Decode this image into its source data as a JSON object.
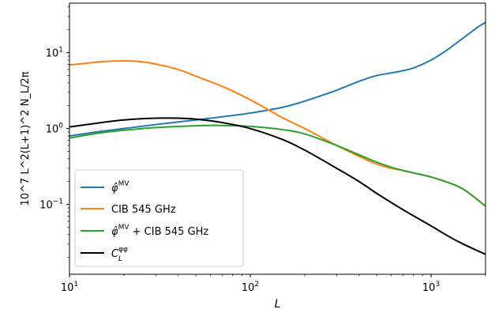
{
  "chart_data": {
    "type": "line",
    "xscale": "log",
    "yscale": "log",
    "xlim": [
      10,
      2000
    ],
    "ylim": [
      0.012,
      45
    ],
    "xlabel": "L",
    "ylabel": "10^7 L^2(L+1)^2 N_L/2π",
    "x_ticks": [
      {
        "value": 10,
        "mant": "10",
        "exp": "1"
      },
      {
        "value": 100,
        "mant": "10",
        "exp": "2"
      },
      {
        "value": 1000,
        "mant": "10",
        "exp": "3"
      }
    ],
    "y_ticks": [
      {
        "value": 0.1,
        "mant": "10",
        "exp": "−1"
      },
      {
        "value": 1,
        "mant": "10",
        "exp": "0"
      },
      {
        "value": 10,
        "mant": "10",
        "exp": "1"
      }
    ],
    "legend_position": "lower-left",
    "series": [
      {
        "name": "φ̂^MV",
        "color": "#1f77b4",
        "x": [
          10,
          15,
          20,
          30,
          50,
          70,
          100,
          150,
          200,
          300,
          400,
          500,
          600,
          700,
          800,
          1000,
          1200,
          1500,
          1800,
          2000
        ],
        "y": [
          0.8,
          0.92,
          1.0,
          1.13,
          1.3,
          1.43,
          1.6,
          1.9,
          2.3,
          3.2,
          4.2,
          5.0,
          5.4,
          5.8,
          6.3,
          8.0,
          10.5,
          15.5,
          21.5,
          25
        ]
      },
      {
        "name": "CIB  545 GHz",
        "color": "#ff7f0e",
        "x": [
          10,
          12,
          15,
          20,
          25,
          30,
          40,
          50,
          70,
          100,
          150,
          200,
          300,
          400,
          500,
          600,
          700,
          800,
          1000,
          1200,
          1500,
          2000
        ],
        "y": [
          6.9,
          7.2,
          7.6,
          7.8,
          7.6,
          7.1,
          6.0,
          4.9,
          3.6,
          2.4,
          1.4,
          1.0,
          0.6,
          0.43,
          0.34,
          0.3,
          0.28,
          0.26,
          0.23,
          0.2,
          0.16,
          0.095
        ]
      },
      {
        "name": "φ̂^MV + CIB  545 GHz",
        "color": "#2ca02c",
        "x": [
          10,
          15,
          20,
          30,
          50,
          70,
          100,
          150,
          200,
          300,
          400,
          500,
          600,
          700,
          800,
          1000,
          1200,
          1500,
          2000
        ],
        "y": [
          0.75,
          0.88,
          0.95,
          1.03,
          1.09,
          1.1,
          1.07,
          0.97,
          0.85,
          0.6,
          0.45,
          0.36,
          0.31,
          0.28,
          0.26,
          0.23,
          0.2,
          0.16,
          0.095
        ]
      },
      {
        "name": "C_L^φφ",
        "color": "#000000",
        "x": [
          10,
          15,
          20,
          30,
          40,
          50,
          70,
          100,
          150,
          200,
          300,
          400,
          500,
          700,
          1000,
          1300,
          1600,
          2000
        ],
        "y": [
          1.05,
          1.2,
          1.3,
          1.37,
          1.37,
          1.33,
          1.2,
          1.0,
          0.72,
          0.52,
          0.3,
          0.2,
          0.14,
          0.085,
          0.052,
          0.036,
          0.028,
          0.022
        ]
      }
    ]
  },
  "legend": {
    "items": [
      {
        "sym": "φ̂",
        "sup": "MV",
        "rest": ""
      },
      {
        "sym": "",
        "sup": "",
        "rest": "CIB  545 GHz"
      },
      {
        "sym": "φ̂",
        "sup": "MV",
        "rest": " + CIB  545 GHz"
      },
      {
        "sym": "C",
        "sup": "φφ",
        "sub": "L",
        "rest": ""
      }
    ]
  }
}
